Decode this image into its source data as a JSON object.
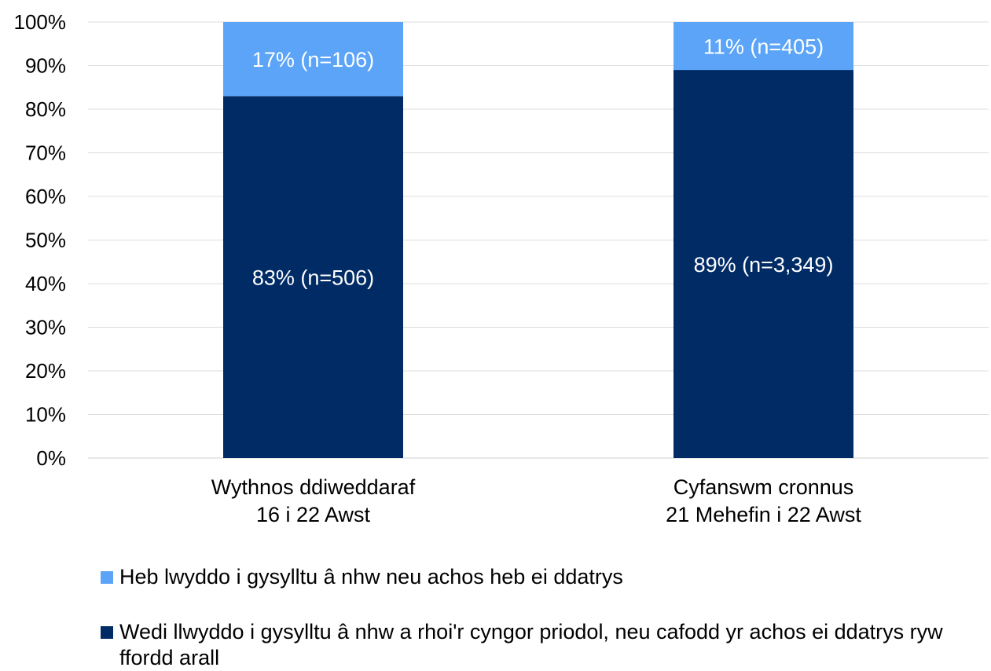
{
  "chart_data": {
    "type": "bar",
    "stacked": true,
    "categories": [
      [
        "Wythnos ddiweddaraf",
        "16 i 22 Awst"
      ],
      [
        "Cyfanswm cronnus",
        "21 Mehefin i 22 Awst"
      ]
    ],
    "series": [
      {
        "name": "Wedi llwyddo i gysylltu â nhw a rhoi'r cyngor priodol, neu cafodd yr achos ei ddatrys ryw ffordd arall",
        "color": "#002B65",
        "values": [
          83,
          89
        ],
        "labels": [
          "83% (n=506)",
          "89% (n=3,349)"
        ]
      },
      {
        "name": "Heb lwyddo i gysylltu â nhw neu achos heb ei ddatrys",
        "color": "#5BA4F7",
        "values": [
          17,
          11
        ],
        "labels": [
          "17% (n=106)",
          "11% (n=405)"
        ]
      }
    ],
    "yticks": [
      "0%",
      "10%",
      "20%",
      "30%",
      "40%",
      "50%",
      "60%",
      "70%",
      "80%",
      "90%",
      "100%"
    ],
    "ylim": [
      0,
      100
    ],
    "grid": true,
    "legend_position": "bottom"
  },
  "legend": [
    {
      "label": "Heb lwyddo i gysylltu â nhw neu achos heb ei ddatrys",
      "color": "#5BA4F7"
    },
    {
      "label": "Wedi llwyddo i gysylltu â nhw a rhoi'r cyngor priodol, neu cafodd yr achos ei ddatrys ryw ffordd arall",
      "color": "#002B65"
    }
  ]
}
